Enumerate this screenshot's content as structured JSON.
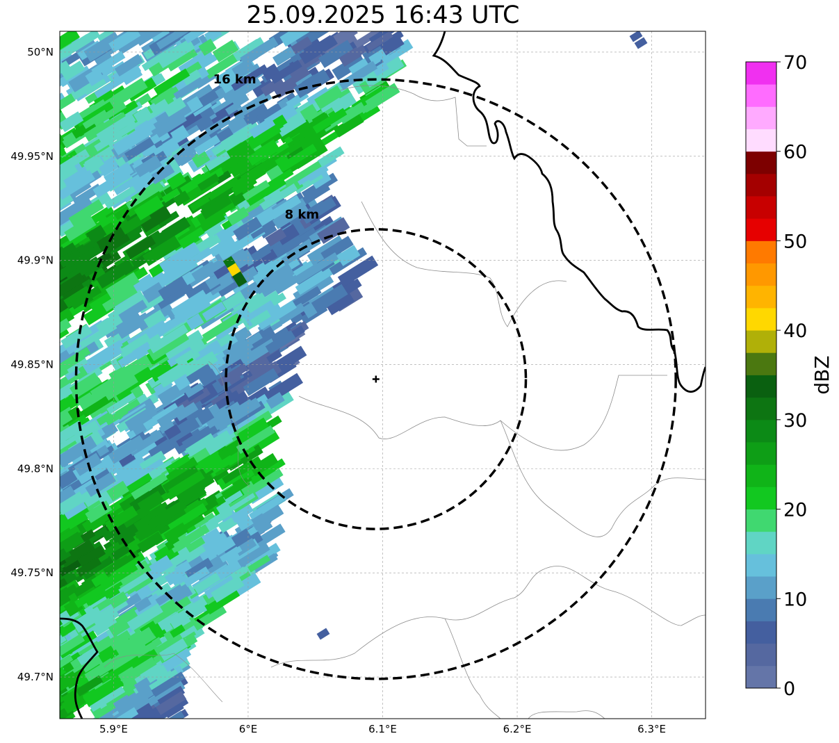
{
  "title": "25.09.2025 16:43 UTC",
  "map": {
    "lon_range": [
      5.86,
      6.34
    ],
    "lat_range": [
      49.68,
      50.01
    ],
    "grid": true,
    "x_ticks": [
      {
        "value": 5.9,
        "label": "5.9°E"
      },
      {
        "value": 6.0,
        "label": "6°E"
      },
      {
        "value": 6.1,
        "label": "6.1°E"
      },
      {
        "value": 6.2,
        "label": "6.2°E"
      },
      {
        "value": 6.3,
        "label": "6.3°E"
      }
    ],
    "y_ticks": [
      {
        "value": 49.7,
        "label": "49.7°N"
      },
      {
        "value": 49.75,
        "label": "49.75°N"
      },
      {
        "value": 49.8,
        "label": "49.8°N"
      },
      {
        "value": 49.85,
        "label": "49.85°N"
      },
      {
        "value": 49.9,
        "label": "49.9°N"
      },
      {
        "value": 49.95,
        "label": "49.95°N"
      },
      {
        "value": 50.0,
        "label": "50°N"
      }
    ],
    "radar_site": {
      "lon": 6.095,
      "lat": 49.843
    },
    "range_rings": [
      {
        "radius_km": 8,
        "label": "8 km",
        "label_lon": 6.04,
        "label_lat": 49.92
      },
      {
        "radius_km": 16,
        "label": "16 km",
        "label_lon": 5.99,
        "label_lat": 49.985
      }
    ],
    "reflectivity_field": "dBZ, echoes mainly west of radar with bands oriented SW-NE"
  },
  "colorbar": {
    "label": "dBZ",
    "min": 0,
    "max": 70,
    "ticks": [
      0,
      10,
      20,
      30,
      40,
      50,
      60,
      70
    ],
    "colors": [
      "#6475a8",
      "#5568a0",
      "#445f9f",
      "#4a7bb1",
      "#5aa0c9",
      "#66c0dc",
      "#60d5c4",
      "#40d870",
      "#12c820",
      "#10b418",
      "#0e9e16",
      "#0c8a16",
      "#0d7512",
      "#0a6010",
      "#4b7810",
      "#b0b008",
      "#ffd800",
      "#ffb400",
      "#ff9800",
      "#ff7a00",
      "#e60000",
      "#c80000",
      "#a40000",
      "#7d0000",
      "#ffdcff",
      "#ffaaff",
      "#ff6cff",
      "#f030f0"
    ]
  }
}
